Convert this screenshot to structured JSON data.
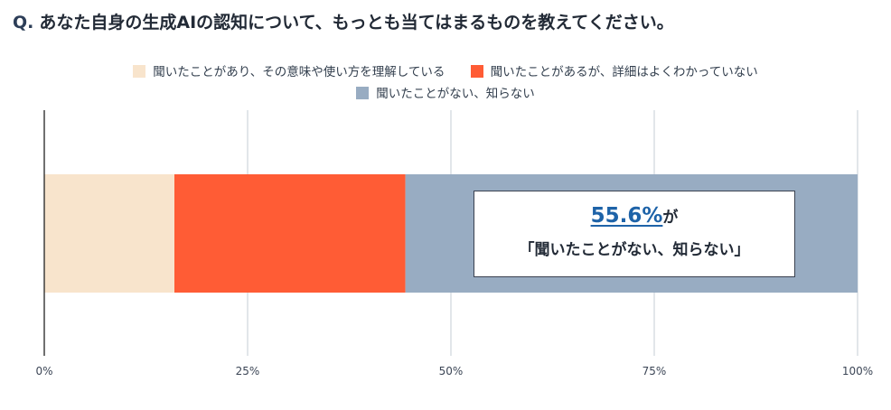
{
  "title": {
    "prefix": "Q.",
    "text": "あなた自身の生成AIの認知について、もっとも当てはまるものを教えてください。"
  },
  "legend": [
    {
      "label": "聞いたことがあり、その意味や使い方を理解している",
      "color": "#f8e4cc"
    },
    {
      "label": "聞いたことがあるが、詳細はよくわかっていない",
      "color": "#ff5c35"
    },
    {
      "label": "聞いたことがない、知らない",
      "color": "#98acc2"
    }
  ],
  "callout": {
    "percent": "55.6%",
    "suffix": "が",
    "text": "「聞いたことがない、知らない」"
  },
  "chart_data": {
    "type": "bar",
    "orientation": "horizontal",
    "stacked": true,
    "categories": [
      ""
    ],
    "series": [
      {
        "name": "聞いたことがあり、その意味や使い方を理解している",
        "values": [
          16
        ],
        "color": "#f8e4cc"
      },
      {
        "name": "聞いたことがあるが、詳細はよくわかっていない",
        "values": [
          28.4
        ],
        "color": "#ff5c35"
      },
      {
        "name": "聞いたことがない、知らない",
        "values": [
          55.6
        ],
        "color": "#98acc2"
      }
    ],
    "xlim": [
      0,
      100
    ],
    "xticks": [
      "0%",
      "25%",
      "50%",
      "75%",
      "100%"
    ],
    "grid": true,
    "legend_position": "top"
  }
}
